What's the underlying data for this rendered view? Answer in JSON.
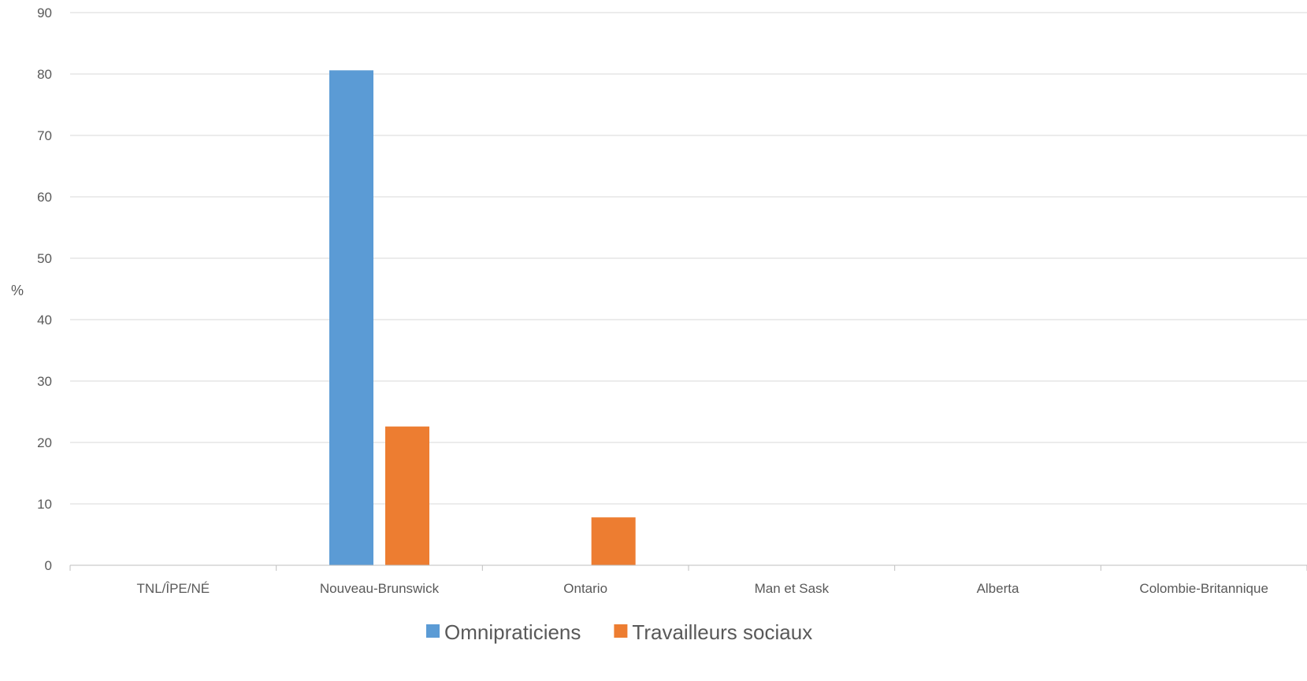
{
  "chart_data": {
    "type": "bar",
    "ylabel": "%",
    "xlabel": "",
    "ylim": [
      0,
      90
    ],
    "yticks": [
      0,
      10,
      20,
      30,
      40,
      50,
      60,
      70,
      80,
      90
    ],
    "grid": true,
    "legend_position": "bottom",
    "categories": [
      "TNL/ÎPE/NÉ",
      "Nouveau-Brunswick",
      "Ontario",
      "Man et Sask",
      "Alberta",
      "Colombie-Britannique"
    ],
    "series": [
      {
        "name": "Omnipraticiens",
        "color": "#5B9BD5",
        "values": [
          0,
          80.6,
          0,
          0,
          0,
          0
        ]
      },
      {
        "name": "Travailleurs sociaux",
        "color": "#ED7D31",
        "values": [
          0,
          22.6,
          7.8,
          0,
          0,
          0
        ]
      }
    ]
  }
}
